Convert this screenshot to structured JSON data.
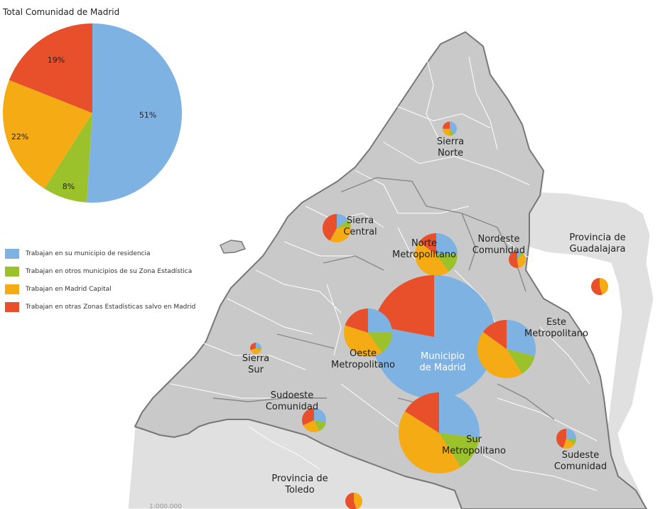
{
  "title": "Total Comunidad de Madrid",
  "scale_text": "1:000.000",
  "colors": {
    "residence": "#7eb2e3",
    "zone": "#9bc12b",
    "capital": "#f5ab14",
    "other": "#e8502c",
    "region": "#c9c9c9",
    "region_light": "#e0e0e0",
    "border_main": "#777777",
    "border_inner": "#ffffff"
  },
  "legend": [
    {
      "key": "residence",
      "label": "Trabajan en su municipio de residencia"
    },
    {
      "key": "zone",
      "label": "Trabajan en otros municipios de su Zona Estadística"
    },
    {
      "key": "capital",
      "label": "Trabajan en Madrid Capital"
    },
    {
      "key": "other",
      "label": "Trabajan en otras Zonas Estadísticas salvo en Madrid"
    }
  ],
  "chart_data": {
    "type": "pie",
    "title": "Total Comunidad de Madrid",
    "categories": [
      "Trabajan en su municipio de residencia",
      "Trabajan en otros municipios de su Zona Estadística",
      "Trabajan en Madrid Capital",
      "Trabajan en otras Zonas Estadísticas salvo en Madrid"
    ],
    "values": [
      51,
      8,
      22,
      19
    ],
    "labels": [
      "51%",
      "8%",
      "22%",
      "19%"
    ]
  },
  "regions": [
    {
      "name": "Sierra Norte",
      "lines": [
        "Sierra",
        "Norte"
      ],
      "shares": [
        0.4,
        0.1,
        0.25,
        0.25
      ]
    },
    {
      "name": "Sierra Central",
      "lines": [
        "Sierra",
        "Central"
      ],
      "shares": [
        0.15,
        0.08,
        0.35,
        0.42
      ]
    },
    {
      "name": "Norte Metropolitano",
      "lines": [
        "Norte",
        "Metropolitano"
      ],
      "shares": [
        0.25,
        0.15,
        0.45,
        0.15
      ]
    },
    {
      "name": "Nordeste Comunidad",
      "lines": [
        "Nordeste",
        "Comunidad"
      ],
      "shares": [
        0.08,
        0.05,
        0.35,
        0.52
      ]
    },
    {
      "name": "Provincia de Guadalajara",
      "lines": [
        "Provincia de",
        "Guadalajara"
      ],
      "shares": [
        0.0,
        0.0,
        0.45,
        0.55
      ]
    },
    {
      "name": "Municipio de Madrid",
      "lines": [
        "Municipio",
        "de Madrid"
      ],
      "shares": [
        0.78,
        0.0,
        0.0,
        0.22
      ]
    },
    {
      "name": "Oeste Metropolitano",
      "lines": [
        "Oeste",
        "Metropolitano"
      ],
      "shares": [
        0.25,
        0.15,
        0.4,
        0.2
      ]
    },
    {
      "name": "Este Metropolitano",
      "lines": [
        "Este",
        "Metropolitano"
      ],
      "shares": [
        0.29,
        0.12,
        0.44,
        0.15
      ]
    },
    {
      "name": "Sierra Sur",
      "lines": [
        "Sierra",
        "Sur"
      ],
      "shares": [
        0.25,
        0.05,
        0.4,
        0.3
      ]
    },
    {
      "name": "Sudoeste Comunidad",
      "lines": [
        "Sudoeste",
        "Comunidad"
      ],
      "shares": [
        0.28,
        0.15,
        0.25,
        0.32
      ]
    },
    {
      "name": "Sur Metropolitano",
      "lines": [
        "Sur",
        "Metropolitano"
      ],
      "shares": [
        0.27,
        0.14,
        0.43,
        0.16
      ]
    },
    {
      "name": "Sudeste Comunidad",
      "lines": [
        "Sudeste",
        "Comunidad"
      ],
      "shares": [
        0.25,
        0.1,
        0.2,
        0.45
      ]
    },
    {
      "name": "Provincia de Toledo",
      "lines": [
        "Provincia de",
        "Toledo"
      ],
      "shares": [
        0.0,
        0.0,
        0.45,
        0.55
      ]
    }
  ]
}
